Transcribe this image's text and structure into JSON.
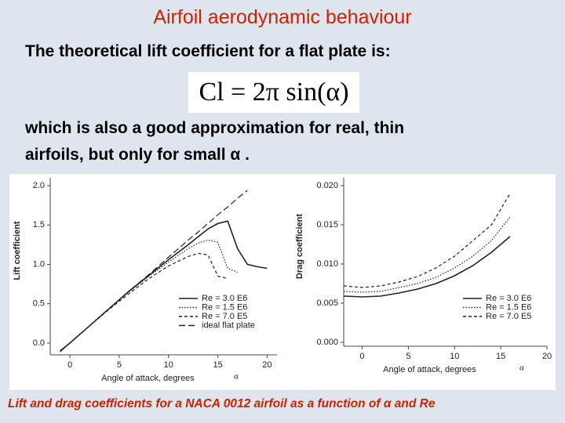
{
  "slide": {
    "title": "Airfoil aerodynamic behaviour",
    "intro": "The theoretical lift coefficient for a flat plate is:",
    "formula": "Cl = 2π sin(α)",
    "text_line1": "which is also a good approximation for real, thin",
    "text_line2": "airfoils, but only for small α .",
    "caption": "Lift and drag coefficients for a NACA 0012 airfoil as a function of α and Re"
  },
  "chart_data": [
    {
      "type": "line",
      "y_label": "Lift coefficient",
      "x_label": "Angle of attack, degrees",
      "annotation": "α",
      "x": [
        -1,
        0,
        2,
        4,
        6,
        8,
        10,
        12,
        13,
        14,
        15,
        16,
        17,
        18,
        19,
        20
      ],
      "series": [
        {
          "name": "Re = 3.0 E6",
          "color": "#222222",
          "style": "solid",
          "values": [
            -0.1,
            0,
            0.22,
            0.44,
            0.66,
            0.86,
            1.06,
            1.25,
            1.35,
            1.45,
            1.52,
            1.55,
            1.2,
            1.0,
            0.97,
            0.95
          ]
        },
        {
          "name": "Re = 1.5 E6",
          "color": "#222222",
          "style": "dotted",
          "values": [
            -0.1,
            0,
            0.22,
            0.44,
            0.65,
            0.85,
            1.03,
            1.2,
            1.27,
            1.31,
            1.28,
            0.95,
            0.9,
            null,
            null,
            null
          ]
        },
        {
          "name": "Re = 7.0 E5",
          "color": "#222222",
          "style": "dashed",
          "values": [
            -0.1,
            0,
            0.22,
            0.43,
            0.63,
            0.82,
            0.98,
            1.1,
            1.14,
            1.12,
            0.85,
            0.82,
            null,
            null,
            null,
            null
          ]
        },
        {
          "name": "ideal flat plate",
          "color": "#222222",
          "style": "long-dashed",
          "values": [
            -0.11,
            0,
            0.22,
            0.44,
            0.66,
            0.87,
            1.09,
            1.31,
            1.41,
            1.52,
            1.63,
            1.73,
            1.84,
            1.94,
            null,
            null
          ]
        }
      ],
      "xlim": [
        -2,
        21
      ],
      "ylim": [
        -0.15,
        2.1
      ],
      "xticks": [
        0,
        5,
        10,
        15,
        20
      ],
      "yticks": [
        {
          "value": 0,
          "label": "0.0"
        },
        {
          "value": 0.5,
          "label": "0.5"
        },
        {
          "value": 1,
          "label": "1.0"
        },
        {
          "value": 1.5,
          "label": "1.5"
        },
        {
          "value": 2,
          "label": "2.0"
        }
      ]
    },
    {
      "type": "line",
      "y_label": "Drag coefficient",
      "x_label": "Angle of attack, degrees",
      "annotation": "α",
      "x": [
        -2,
        0,
        2,
        4,
        6,
        8,
        10,
        12,
        14,
        16
      ],
      "series": [
        {
          "name": "Re = 3.0 E6",
          "color": "#222222",
          "style": "solid",
          "values": [
            0.0059,
            0.0058,
            0.0059,
            0.0063,
            0.0068,
            0.0075,
            0.0085,
            0.0098,
            0.0115,
            0.0135
          ]
        },
        {
          "name": "Re = 1.5 E6",
          "color": "#222222",
          "style": "dotted",
          "values": [
            0.0065,
            0.0064,
            0.0065,
            0.007,
            0.0075,
            0.0083,
            0.0095,
            0.011,
            0.013,
            0.016
          ]
        },
        {
          "name": "Re = 7.0 E5",
          "color": "#222222",
          "style": "dashed",
          "values": [
            0.0072,
            0.007,
            0.0072,
            0.0077,
            0.0084,
            0.0095,
            0.011,
            0.013,
            0.015,
            0.019
          ]
        }
      ],
      "xlim": [
        -2,
        20
      ],
      "ylim": [
        -0.0005,
        0.021
      ],
      "xticks": [
        0,
        5,
        10,
        15,
        20
      ],
      "yticks": [
        {
          "value": 0,
          "label": "0.000"
        },
        {
          "value": 0.005,
          "label": "0.005"
        },
        {
          "value": 0.01,
          "label": "0.010"
        },
        {
          "value": 0.015,
          "label": "0.015"
        },
        {
          "value": 0.02,
          "label": "0.020"
        }
      ]
    }
  ]
}
